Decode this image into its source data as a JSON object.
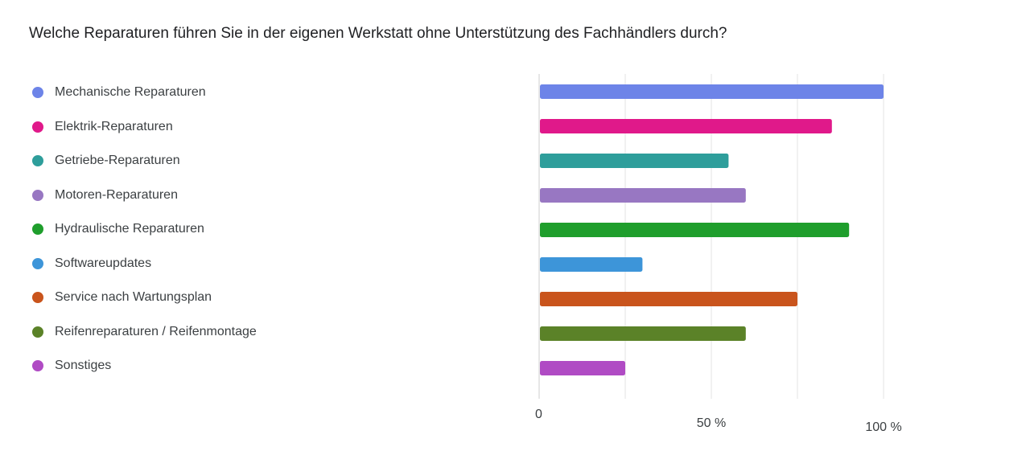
{
  "title": "Welche Reparaturen führen Sie in der eigenen Werkstatt ohne Unterstützung des Fachhändlers durch?",
  "chart_data": {
    "type": "bar",
    "orientation": "horizontal",
    "categories": [
      "Mechanische Reparaturen",
      "Elektrik-Reparaturen",
      "Getriebe-Reparaturen",
      "Motoren-Reparaturen",
      "Hydraulische Reparaturen",
      "Softwareupdates",
      "Service nach Wartungsplan",
      "Reifenreparaturen / Reifenmontage",
      "Sonstiges"
    ],
    "values": [
      100,
      85,
      55,
      60,
      90,
      30,
      75,
      60,
      25
    ],
    "colors": [
      "#6d84e8",
      "#e0198a",
      "#2e9e9b",
      "#9877c2",
      "#1f9e2c",
      "#3d95d9",
      "#c9541c",
      "#5b8228",
      "#b04bc4"
    ],
    "xlim": [
      0,
      100
    ],
    "unit": "%",
    "x_ticks": [
      0,
      25,
      50,
      75,
      100
    ],
    "x_tick_labels": [
      "0",
      "",
      "50 %",
      "",
      "100 %"
    ],
    "grid": true,
    "legend_placement": "left"
  }
}
